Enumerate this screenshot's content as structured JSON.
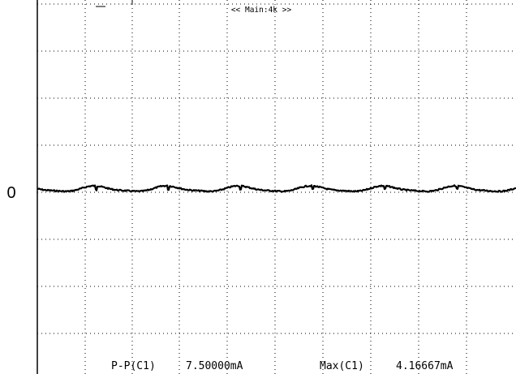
{
  "header": {
    "label": "<< Main:4k >>"
  },
  "y_axis": {
    "zero_label": "0"
  },
  "measurements": [
    {
      "name": "P-P(C1)",
      "value": "7.50000mA"
    },
    {
      "name": "Max(C1)",
      "value": "4.16667mA"
    }
  ],
  "colors": {
    "trace": "#000000",
    "grid": "#000000",
    "background": "#ffffff"
  }
}
